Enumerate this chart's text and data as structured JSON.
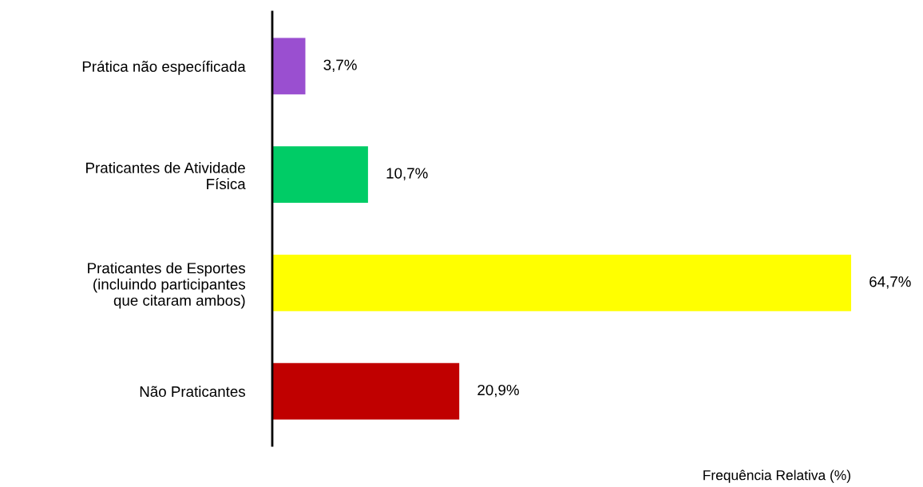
{
  "chart_data": {
    "type": "bar",
    "orientation": "horizontal",
    "xlabel": "Frequência Relativa (%)",
    "categories": [
      "Prática não específicada",
      "Praticantes de Atividade\nFísica",
      "Praticantes de Esportes\n(incluindo participantes\nque citaram ambos)",
      "Não Praticantes"
    ],
    "values": [
      3.7,
      10.7,
      64.7,
      20.9
    ],
    "colors": [
      "#9a4fd0",
      "#00cc66",
      "#ffff00",
      "#c00000"
    ],
    "value_labels": [
      "3,7%",
      "10,7%",
      "64,7%",
      "20,9%"
    ],
    "grid": false,
    "legend": false
  }
}
